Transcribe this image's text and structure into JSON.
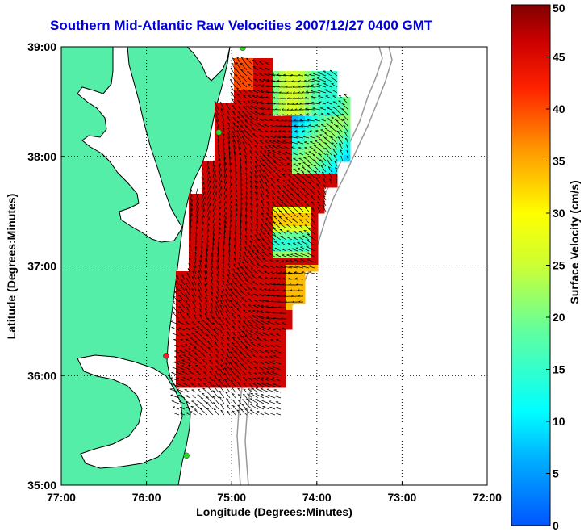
{
  "title": "Southern Mid-Atlantic Raw Velocities 2007/12/27 0400 GMT",
  "xlabel": "Longitude (Degrees:Minutes)",
  "ylabel": "Latitude (Degrees:Minutes)",
  "colorbar_label": "Surface Velocity (cm/s)",
  "colors": {
    "land": "#55eea8",
    "water": "#ffffff",
    "coastline": "#000000",
    "isobath": "#999999",
    "vectors": "#000000",
    "station_green": "#22dd22",
    "station_red": "#ee2222",
    "title": "#0000dd"
  },
  "chart_data": {
    "type": "heatmap",
    "xlim": [
      -77,
      -72
    ],
    "ylim": [
      35,
      39
    ],
    "xticks": [
      {
        "value": -77,
        "label": "77:00"
      },
      {
        "value": -76,
        "label": "76:00"
      },
      {
        "value": -75,
        "label": "75:00"
      },
      {
        "value": -74,
        "label": "74:00"
      },
      {
        "value": -73,
        "label": "73:00"
      },
      {
        "value": -72,
        "label": "72:00"
      }
    ],
    "yticks": [
      {
        "value": 35,
        "label": "35:00"
      },
      {
        "value": 36,
        "label": "36:00"
      },
      {
        "value": 37,
        "label": "37:00"
      },
      {
        "value": 38,
        "label": "38:00"
      },
      {
        "value": 39,
        "label": "39:00"
      }
    ],
    "grid": true,
    "grid_style": "dotted",
    "colorbar": {
      "min": 0,
      "max": 50,
      "ticks": [
        0,
        5,
        10,
        15,
        20,
        25,
        30,
        35,
        40,
        45,
        50
      ],
      "colormap": "jet"
    },
    "stations": [
      {
        "lon": -74.87,
        "lat": 38.99,
        "color": "green"
      },
      {
        "lon": -75.15,
        "lat": 38.22,
        "color": "green"
      },
      {
        "lon": -75.77,
        "lat": 36.18,
        "color": "red"
      },
      {
        "lon": -75.53,
        "lat": 35.27,
        "color": "green"
      }
    ]
  }
}
